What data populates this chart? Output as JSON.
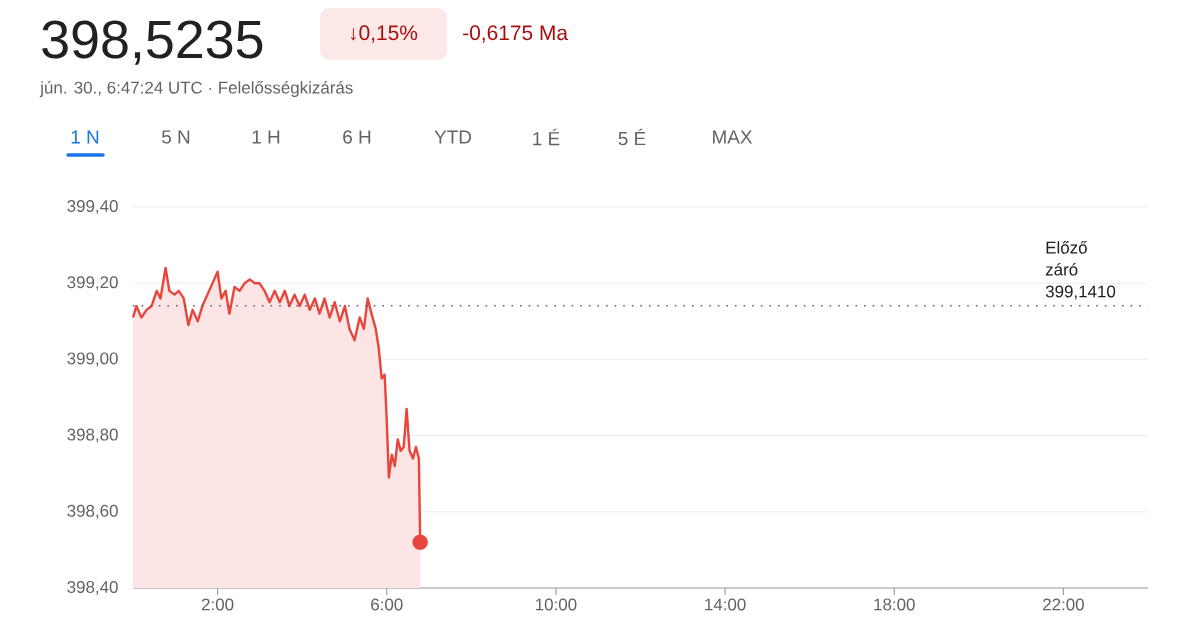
{
  "chart_data": {
    "type": "area",
    "title": "398,5235",
    "subtitle": "jún. 30., 6:47:24 UTC · Felelősségkizárás",
    "annotations": [
      "↓0,15%",
      "-0,6175 Ma",
      "1 N",
      "5 N",
      "1 H",
      "6 H",
      "YTD",
      "1 É",
      "5 É",
      "MAX"
    ],
    "xlim": [
      0,
      24
    ],
    "xticks": [
      {
        "value": 2,
        "label": "2:00"
      },
      {
        "value": 6,
        "label": "6:00"
      },
      {
        "value": 10,
        "label": "10:00"
      },
      {
        "value": 14,
        "label": "14:00"
      },
      {
        "value": 18,
        "label": "18:00"
      },
      {
        "value": 22,
        "label": "22:00"
      }
    ],
    "ylim": [
      398.4,
      399.4
    ],
    "yticks": [
      {
        "value": 398.4,
        "label": "398,40"
      },
      {
        "value": 398.6,
        "label": "398,60"
      },
      {
        "value": 398.8,
        "label": "398,80"
      },
      {
        "value": 399.0,
        "label": "399,00"
      },
      {
        "value": 399.2,
        "label": "399,20"
      },
      {
        "value": 399.4,
        "label": "399,40"
      }
    ],
    "grid": "y",
    "ref_lines": [
      {
        "axis": "y",
        "value": 399.141,
        "label": "Előző záró 399,1410",
        "color": "#5f6368",
        "line_style": "dotted"
      }
    ],
    "series": [
      {
        "color": "#e8453c",
        "x": [
          0,
          0.08,
          0.2,
          0.32,
          0.44,
          0.56,
          0.65,
          0.77,
          0.86,
          0.98,
          1.08,
          1.2,
          1.31,
          1.41,
          1.53,
          1.64,
          1.76,
          1.88,
          2,
          2.09,
          2.19,
          2.28,
          2.4,
          2.52,
          2.64,
          2.76,
          2.88,
          2.99,
          3.11,
          3.23,
          3.35,
          3.47,
          3.59,
          3.7,
          3.82,
          3.94,
          4.06,
          4.18,
          4.3,
          4.41,
          4.53,
          4.65,
          4.77,
          4.89,
          5.01,
          5.12,
          5.24,
          5.36,
          5.46,
          5.55,
          5.64,
          5.74,
          5.81,
          5.88,
          5.95,
          6,
          6.05,
          6.12,
          6.19,
          6.26,
          6.33,
          6.4,
          6.47,
          6.54,
          6.62,
          6.69,
          6.76,
          6.79
        ],
        "values": [
          399.11,
          399.14,
          399.11,
          399.13,
          399.14,
          399.18,
          399.16,
          399.24,
          399.18,
          399.17,
          399.18,
          399.16,
          399.09,
          399.13,
          399.1,
          399.14,
          399.17,
          399.2,
          399.23,
          399.16,
          399.18,
          399.12,
          399.19,
          399.18,
          399.2,
          399.21,
          399.2,
          399.2,
          399.18,
          399.15,
          399.18,
          399.15,
          399.18,
          399.14,
          399.17,
          399.14,
          399.17,
          399.13,
          399.16,
          399.12,
          399.16,
          399.11,
          399.15,
          399.1,
          399.14,
          399.08,
          399.05,
          399.11,
          399.08,
          399.16,
          399.12,
          399.08,
          399.03,
          398.95,
          398.96,
          398.84,
          398.69,
          398.75,
          398.72,
          398.79,
          398.76,
          398.77,
          398.87,
          398.76,
          398.74,
          398.77,
          398.74,
          398.52
        ]
      },
      {
        "type": "scatter",
        "color": "#e8453c",
        "x": [
          6.79
        ],
        "values": [
          398.52
        ]
      }
    ]
  }
}
